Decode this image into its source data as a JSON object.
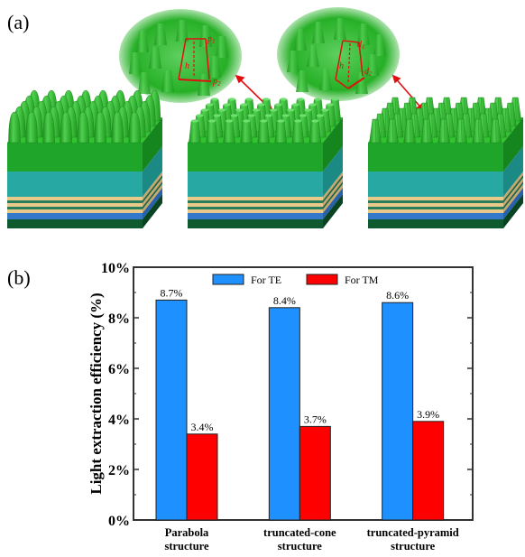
{
  "panels": {
    "a": "(a)",
    "b": "(b)"
  },
  "inset_labels": {
    "left": {
      "p1": "p",
      "s1": "1",
      "h": "h",
      "p2": "p",
      "s2": "2"
    },
    "right": {
      "d1": "d",
      "s1": "1",
      "h": "h",
      "d2": "d",
      "s2": "2"
    }
  },
  "colors": {
    "te": "#1e90ff",
    "tm": "#ff0000",
    "green": "#22b522",
    "teal": "#27a8a2",
    "sand": "#e9c98a",
    "blue": "#3478c9",
    "dark_green": "#0f5a2e",
    "annotation": "#e01010"
  },
  "chart_data": {
    "type": "bar",
    "categories": [
      [
        "Parabola",
        "structure"
      ],
      [
        "truncated-cone",
        "structure"
      ],
      [
        "truncated-pyramid",
        "structure"
      ]
    ],
    "series": [
      {
        "name": "For TE",
        "values": [
          8.7,
          8.4,
          8.6
        ],
        "labels": [
          "8.7%",
          "8.4%",
          "8.6%"
        ]
      },
      {
        "name": "For TM",
        "values": [
          3.4,
          3.7,
          3.9
        ],
        "labels": [
          "3.4%",
          "3.7%",
          "3.9%"
        ]
      }
    ],
    "ylabel": "Light extraction efficiency (%)",
    "xlabel": "",
    "ylim": [
      0,
      10
    ],
    "yticks": [
      0,
      2,
      4,
      6,
      8,
      10
    ],
    "ytick_labels": [
      "0%",
      "2%",
      "4%",
      "6%",
      "8%",
      "10%"
    ],
    "legend_position": "top",
    "grid": false
  }
}
